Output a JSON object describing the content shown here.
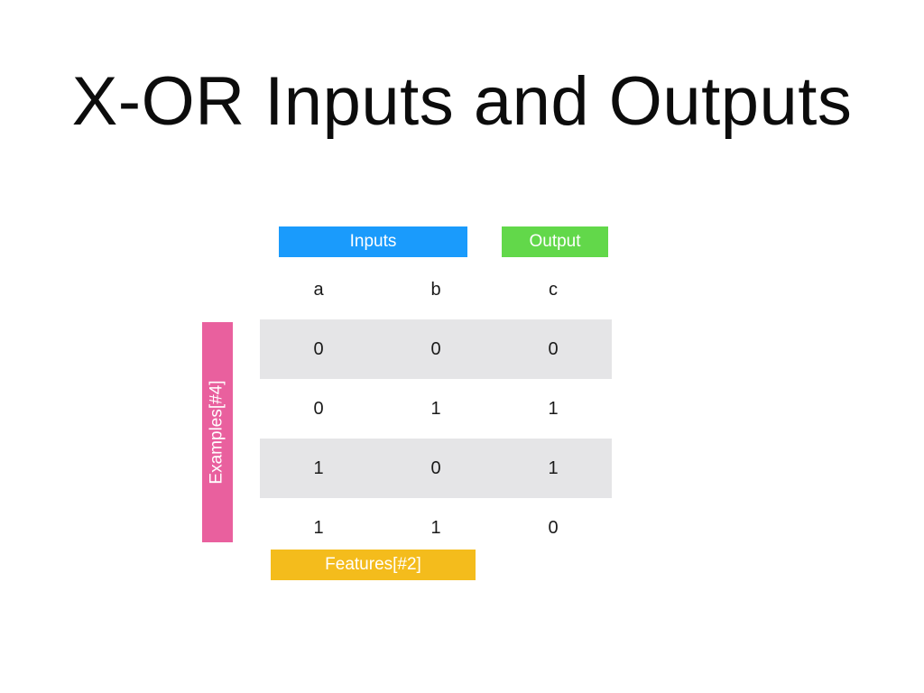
{
  "title": "X-OR Inputs and Outputs",
  "labels": {
    "inputs": "Inputs",
    "output": "Output",
    "examples": "Examples[#4]",
    "features": "Features[#2]"
  },
  "table": {
    "headers": [
      "a",
      "b",
      "c"
    ],
    "rows": [
      [
        "0",
        "0",
        "0"
      ],
      [
        "0",
        "1",
        "1"
      ],
      [
        "1",
        "0",
        "1"
      ],
      [
        "1",
        "1",
        "0"
      ]
    ]
  },
  "colors": {
    "inputs": "#1a9bfc",
    "output": "#62d84a",
    "examples": "#e9609e",
    "features": "#f4bc1c",
    "row_shade": "#e5e5e7"
  }
}
